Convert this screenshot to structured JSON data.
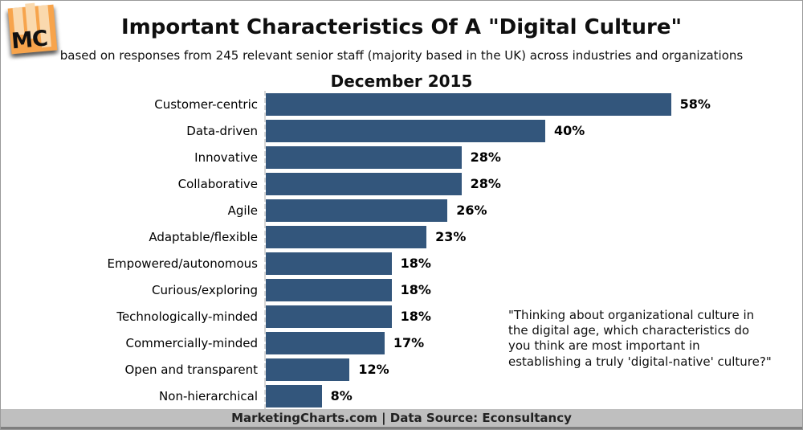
{
  "logo": {
    "text": "MC"
  },
  "header": {
    "title": "Important Characteristics Of A \"Digital Culture\"",
    "subtitle": "based on responses from 245 relevant senior staff (majority based in the UK) across industries and organizations",
    "date": "December 2015"
  },
  "chart_data": {
    "type": "bar",
    "orientation": "horizontal",
    "title": "Important Characteristics Of A \"Digital Culture\"",
    "subtitle": "based on responses from 245 relevant senior staff (majority based in the UK) across industries and organizations",
    "date_label": "December 2015",
    "categories": [
      "Customer-centric",
      "Data-driven",
      "Innovative",
      "Collaborative",
      "Agile",
      "Adaptable/flexible",
      "Empowered/autonomous",
      "Curious/exploring",
      "Technologically-minded",
      "Commercially-minded",
      "Open and transparent",
      "Non-hierarchical"
    ],
    "values": [
      58,
      40,
      28,
      28,
      26,
      23,
      18,
      18,
      18,
      17,
      12,
      8
    ],
    "value_labels": [
      "58%",
      "40%",
      "28%",
      "28%",
      "26%",
      "23%",
      "18%",
      "18%",
      "18%",
      "17%",
      "12%",
      "8%"
    ],
    "xlabel": "",
    "ylabel": "",
    "xlim": [
      0,
      60
    ],
    "grid": false,
    "legend": false,
    "bar_color": "#33567c",
    "axis_line_style": "dashed"
  },
  "annotation": "\"Thinking about organizational culture in\nthe digital age, which characteristics do\nyou think are most important in\nestablishing a truly 'digital-native' culture?\"",
  "footer": {
    "text": "MarketingCharts.com | Data Source: Econsultancy"
  },
  "colors": {
    "bar": "#33567c",
    "logo_orange": "#f7a44c",
    "logo_bars": "#fad9ae",
    "footer_bg": "#bfbfbf",
    "footer_border": "#7e7e7e",
    "axis_dash": "#d6d6d6"
  }
}
